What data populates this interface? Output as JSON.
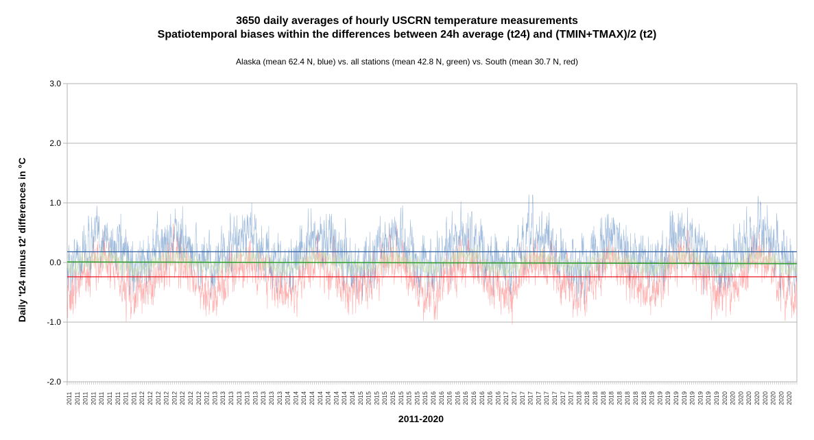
{
  "chart_data": {
    "type": "line",
    "title": "3650 daily averages of hourly USCRN temperature measurements",
    "title_line2": "Spatiotemporal biases within the differences between 24h average (t24) and (TMIN+TMAX)/2 (t2)",
    "subtitle": "Alaska (mean 62.4 N, blue) vs. all stations (mean 42.8 N, green) vs. South (mean 30.7 N, red)",
    "xlabel": "2011-2020",
    "ylabel": "Daily 't24 minus t2' differences in °C",
    "ylim": [
      -2.0,
      3.0
    ],
    "yticks": [
      "3.0",
      "2.0",
      "1.0",
      "0.0",
      "-1.0",
      "-2.0"
    ],
    "ytick_values": [
      3.0,
      2.0,
      1.0,
      0.0,
      -1.0,
      -2.0
    ],
    "n_days": 3650,
    "x_year_start": 2011,
    "x_year_end": 2020,
    "grid": true,
    "series": [
      {
        "name": "Alaska (blue)",
        "color": "#4f81bd",
        "mean_line": 0.18,
        "seasonal_amplitude": 0.3,
        "noise": 0.3,
        "phase": 0.0
      },
      {
        "name": "All stations (green)",
        "color": "#c9dcae",
        "mean_line_start": 0.01,
        "mean_line_end": -0.02,
        "mean_color": "#2e9e2e",
        "seasonal_amplitude": 0.12,
        "noise": 0.12
      },
      {
        "name": "South (red)",
        "color": "#ff6b6b",
        "mean_line": -0.24,
        "mean_color": "#e8141b",
        "seasonal_amplitude": 0.3,
        "noise": 0.28
      }
    ],
    "trend_lines": [
      {
        "name": "Alaska mean",
        "color": "#2f5f9e",
        "value": 0.18
      },
      {
        "name": "All stations mean",
        "color": "#2e9e2e",
        "start": 0.01,
        "end": -0.02
      },
      {
        "name": "South mean",
        "color": "#e8141b",
        "value": -0.24
      }
    ]
  }
}
